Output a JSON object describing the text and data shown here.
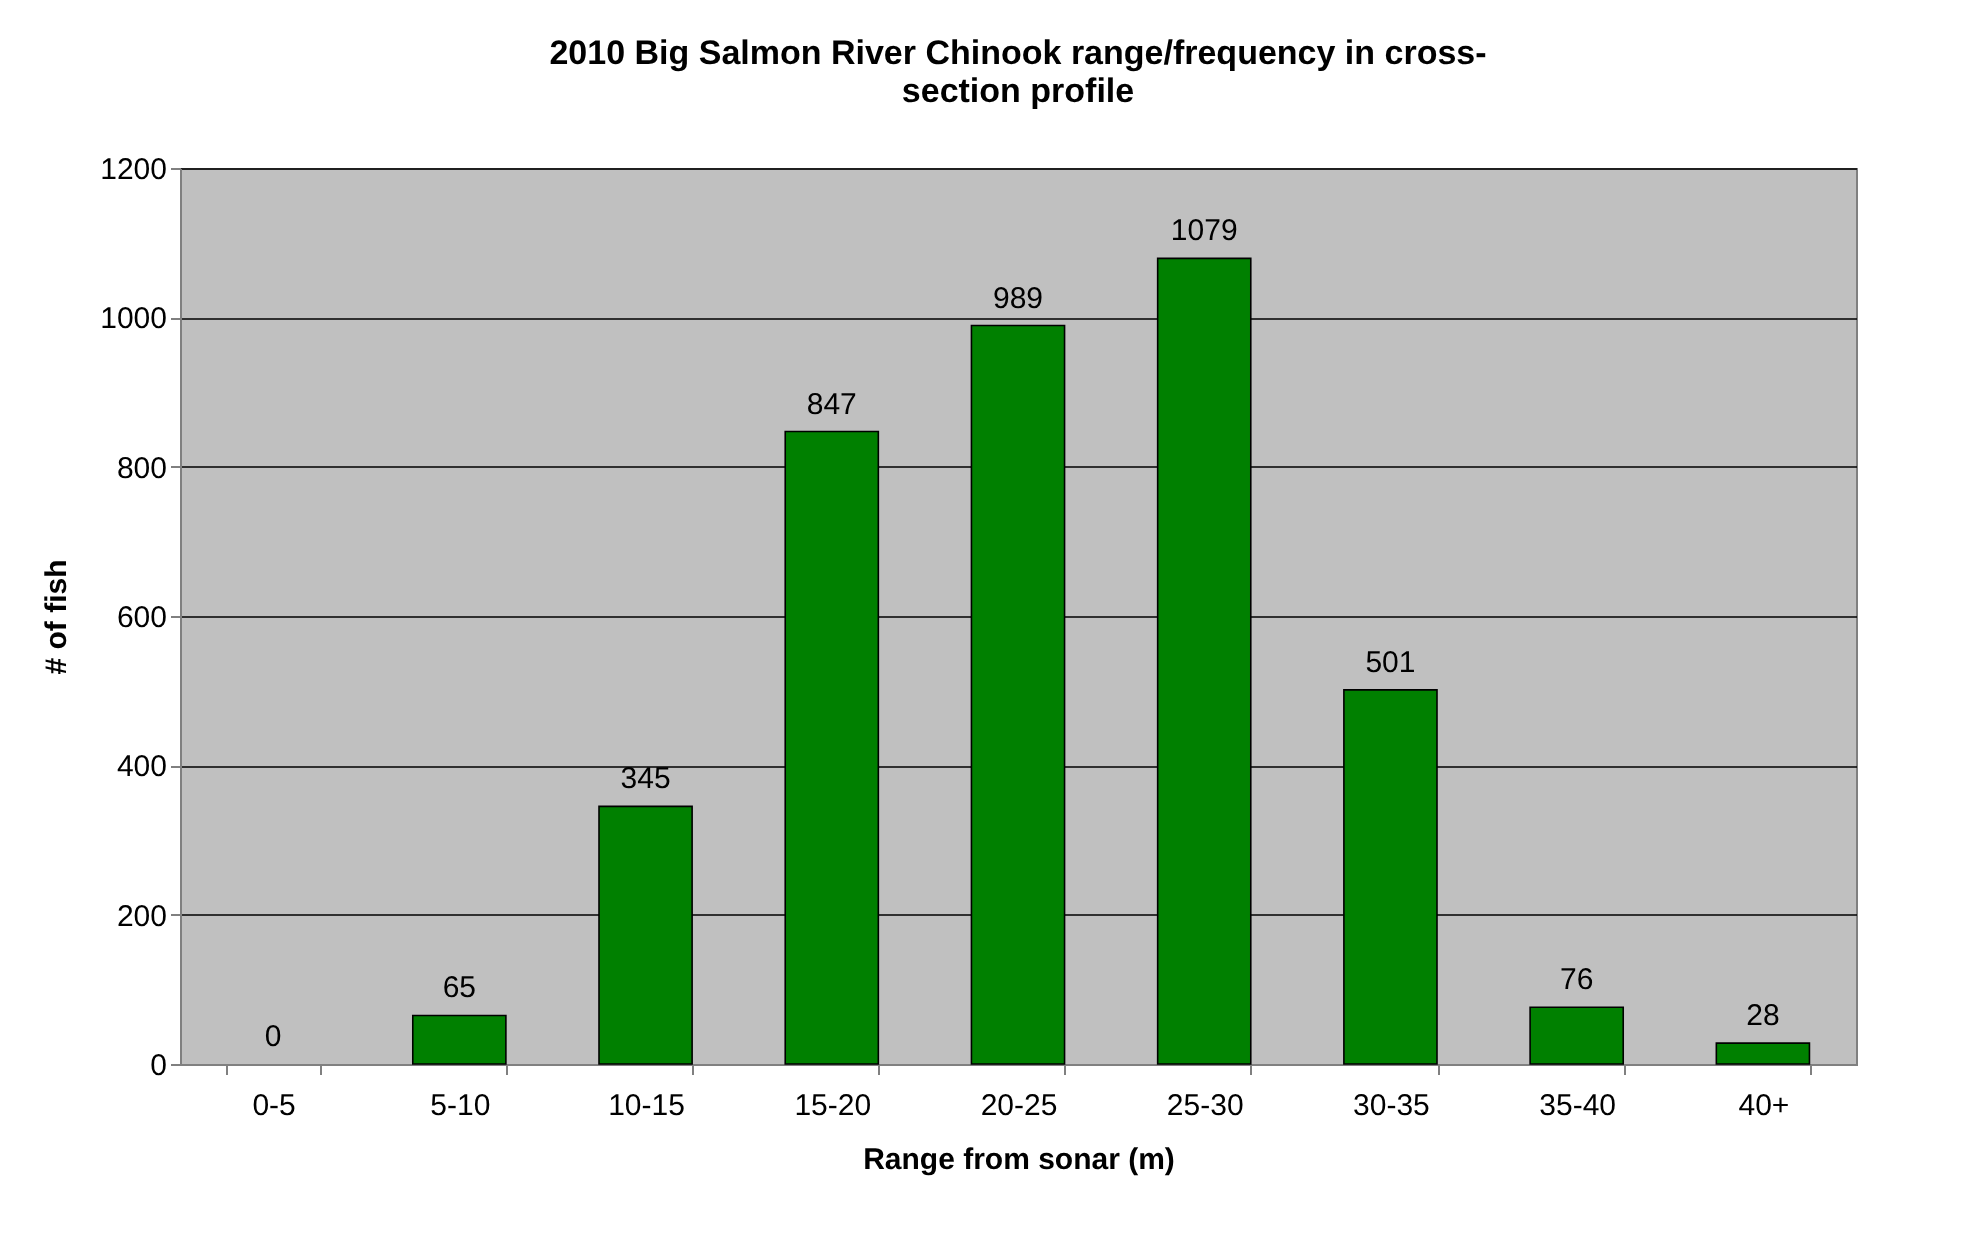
{
  "chart_data": {
    "type": "bar",
    "title": "2010 Big Salmon River Chinook range/frequency in cross-section profile",
    "xlabel": "Range from sonar (m)",
    "ylabel": "# of fish",
    "categories": [
      "0-5",
      "5-10",
      "10-15",
      "15-20",
      "20-25",
      "25-30",
      "30-35",
      "35-40",
      "40+"
    ],
    "series": [
      {
        "color": "#008000",
        "values": [
          0,
          65,
          345,
          847,
          989,
          1079,
          501,
          76,
          28
        ]
      }
    ],
    "ylim": [
      0,
      1200
    ],
    "yticks": [
      0,
      200,
      400,
      600,
      800,
      1000,
      1200
    ],
    "grid": "y",
    "data_labels": true,
    "legend": false
  }
}
